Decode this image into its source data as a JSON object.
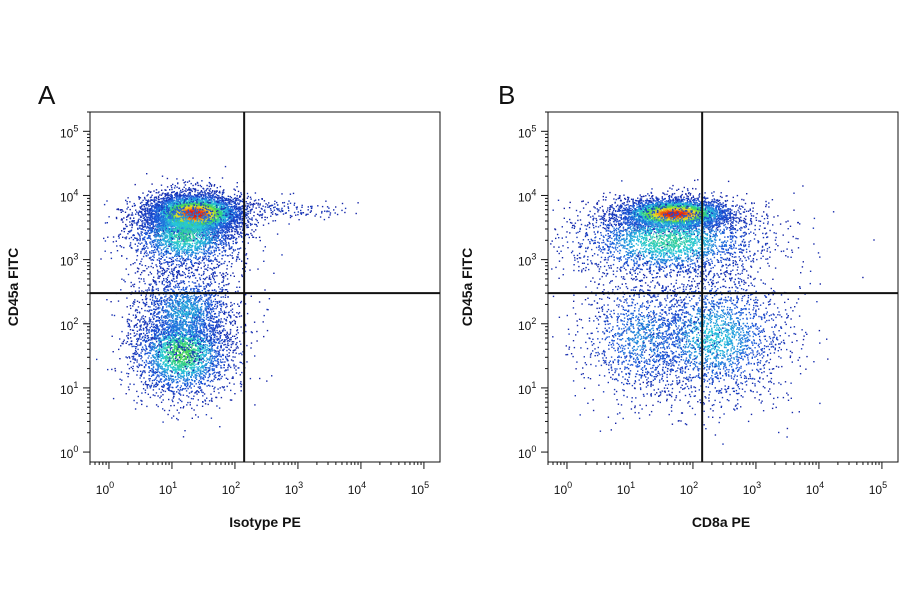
{
  "chart_data": [
    {
      "type": "scatter",
      "panel_label": "A",
      "xlabel": "Isotype PE",
      "ylabel": "CD45a FITC",
      "x_scale": "log",
      "y_scale": "log",
      "xlim": [
        0.5,
        180000
      ],
      "ylim": [
        0.7,
        200000
      ],
      "x_ticks": [
        {
          "base": "10",
          "exp": "0"
        },
        {
          "base": "10",
          "exp": "1"
        },
        {
          "base": "10",
          "exp": "2"
        },
        {
          "base": "10",
          "exp": "3"
        },
        {
          "base": "10",
          "exp": "4"
        },
        {
          "base": "10",
          "exp": "5"
        }
      ],
      "y_ticks": [
        {
          "base": "10",
          "exp": "0"
        },
        {
          "base": "10",
          "exp": "1"
        },
        {
          "base": "10",
          "exp": "2"
        },
        {
          "base": "10",
          "exp": "3"
        },
        {
          "base": "10",
          "exp": "4"
        },
        {
          "base": "10",
          "exp": "5"
        }
      ],
      "gate": {
        "x": 140,
        "y": 300
      },
      "colormap": "density (blue-cyan-green-yellow-red)",
      "populations": [
        {
          "cx_log": 1.35,
          "cy_log": 3.72,
          "sx": 0.38,
          "sy": 0.16,
          "n": 5200,
          "peak": 1.0
        },
        {
          "cx_log": 1.2,
          "cy_log": 3.4,
          "sx": 0.45,
          "sy": 0.3,
          "n": 2200,
          "peak": 0.45
        },
        {
          "cx_log": 1.15,
          "cy_log": 1.55,
          "sx": 0.4,
          "sy": 0.35,
          "n": 2600,
          "peak": 0.55
        },
        {
          "cx_log": 1.2,
          "cy_log": 2.2,
          "sx": 0.4,
          "sy": 0.35,
          "n": 1600,
          "peak": 0.3
        },
        {
          "cx_log": 2.8,
          "cy_log": 3.8,
          "sx": 0.5,
          "sy": 0.08,
          "n": 140,
          "peak": 0.05
        }
      ]
    },
    {
      "type": "scatter",
      "panel_label": "B",
      "xlabel": "CD8a PE",
      "ylabel": "CD45a FITC",
      "x_scale": "log",
      "y_scale": "log",
      "xlim": [
        0.5,
        180000
      ],
      "ylim": [
        0.7,
        200000
      ],
      "x_ticks": [
        {
          "base": "10",
          "exp": "0"
        },
        {
          "base": "10",
          "exp": "1"
        },
        {
          "base": "10",
          "exp": "2"
        },
        {
          "base": "10",
          "exp": "3"
        },
        {
          "base": "10",
          "exp": "4"
        },
        {
          "base": "10",
          "exp": "5"
        }
      ],
      "y_ticks": [
        {
          "base": "10",
          "exp": "0"
        },
        {
          "base": "10",
          "exp": "1"
        },
        {
          "base": "10",
          "exp": "2"
        },
        {
          "base": "10",
          "exp": "3"
        },
        {
          "base": "10",
          "exp": "4"
        },
        {
          "base": "10",
          "exp": "5"
        }
      ],
      "gate": {
        "x": 140,
        "y": 300
      },
      "colormap": "density (blue-cyan-green-yellow-red)",
      "populations": [
        {
          "cx_log": 1.7,
          "cy_log": 3.72,
          "sx": 0.45,
          "sy": 0.12,
          "n": 3600,
          "peak": 1.0
        },
        {
          "cx_log": 1.6,
          "cy_log": 3.3,
          "sx": 0.75,
          "sy": 0.3,
          "n": 2600,
          "peak": 0.45
        },
        {
          "cx_log": 2.3,
          "cy_log": 1.8,
          "sx": 0.6,
          "sy": 0.5,
          "n": 2200,
          "peak": 0.35
        },
        {
          "cx_log": 1.2,
          "cy_log": 1.8,
          "sx": 0.5,
          "sy": 0.5,
          "n": 1200,
          "peak": 0.25
        }
      ]
    }
  ]
}
